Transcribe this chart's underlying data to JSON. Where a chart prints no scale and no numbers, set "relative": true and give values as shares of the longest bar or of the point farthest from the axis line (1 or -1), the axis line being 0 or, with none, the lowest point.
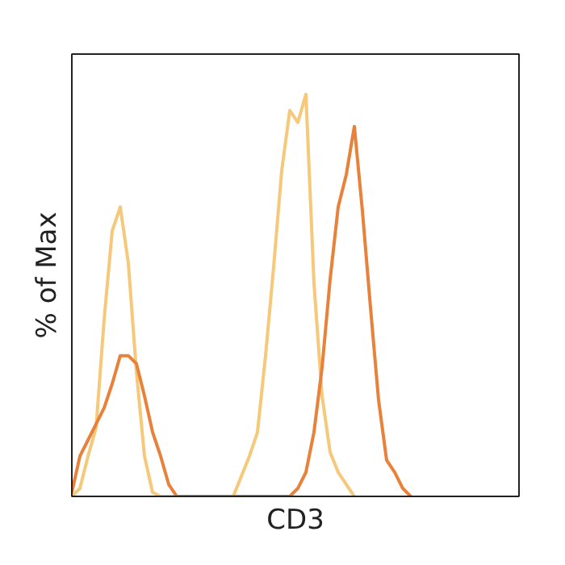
{
  "chart_data": {
    "type": "line",
    "relative": true,
    "xlabel": "CD3",
    "ylabel": "% of Max",
    "categories": [
      null,
      null,
      null,
      null,
      null,
      null,
      null,
      null,
      null,
      null,
      null,
      null,
      null,
      null,
      null,
      null,
      null,
      null,
      null,
      null,
      null,
      null,
      null,
      null,
      null,
      null,
      null,
      null,
      null,
      null,
      null,
      null,
      null,
      null,
      null,
      null,
      null,
      null,
      null,
      null,
      null,
      null,
      null,
      null,
      null,
      null,
      null,
      null,
      null,
      null,
      null,
      null,
      null,
      null,
      null,
      null
    ],
    "grid": false,
    "legend": false,
    "marker": "none",
    "line_style": "solid",
    "series": [
      {
        "color": "#f5c87a",
        "values": [
          0,
          0.02,
          0.1,
          0.17,
          0.44,
          0.66,
          0.72,
          0.58,
          0.31,
          0.1,
          0.01,
          0,
          0,
          0,
          0,
          0,
          0,
          0,
          0,
          0,
          0,
          0.05,
          0.1,
          0.16,
          0.35,
          0.57,
          0.81,
          0.96,
          0.93,
          1.0,
          0.53,
          0.25,
          0.11,
          0.06,
          0.03,
          0,
          null,
          null,
          null,
          null,
          null,
          null,
          null,
          null,
          null,
          null,
          null,
          null,
          null,
          null,
          null,
          null,
          null,
          null,
          null,
          null
        ]
      },
      {
        "color": "#e8813a",
        "values": [
          0.01,
          0.1,
          0.14,
          0.18,
          0.22,
          0.28,
          0.35,
          0.35,
          0.33,
          0.25,
          0.16,
          0.1,
          0.03,
          0,
          0,
          0,
          0,
          0,
          0,
          0,
          0,
          0,
          0,
          0,
          0,
          0,
          0,
          0,
          0.02,
          0.06,
          0.16,
          0.32,
          0.54,
          0.72,
          0.8,
          0.92,
          0.71,
          0.47,
          0.24,
          0.09,
          0.06,
          0.02,
          0,
          null,
          null,
          null,
          null,
          null,
          null,
          null,
          null,
          null,
          null,
          null,
          null,
          null
        ]
      }
    ]
  }
}
